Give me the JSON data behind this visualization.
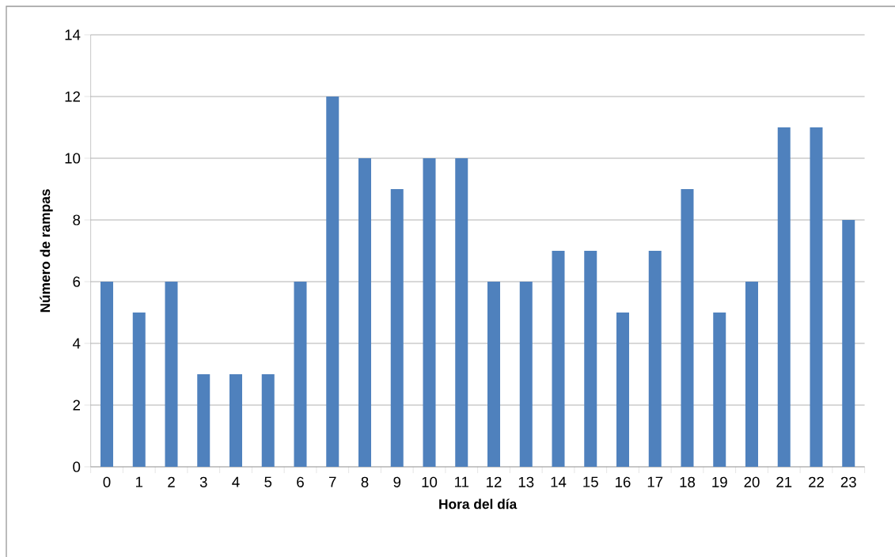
{
  "chart_data": {
    "type": "bar",
    "xlabel": "Hora del día",
    "ylabel": "Número de rampas",
    "categories": [
      "0",
      "1",
      "2",
      "3",
      "4",
      "5",
      "6",
      "7",
      "8",
      "9",
      "10",
      "11",
      "12",
      "13",
      "14",
      "15",
      "16",
      "17",
      "18",
      "19",
      "20",
      "21",
      "22",
      "23"
    ],
    "values": [
      6,
      5,
      6,
      3,
      3,
      3,
      6,
      12,
      10,
      9,
      10,
      10,
      6,
      6,
      7,
      7,
      5,
      7,
      9,
      5,
      6,
      11,
      11,
      8
    ],
    "color": "#4f81bd",
    "ylim": [
      0,
      14
    ],
    "yticks": [
      0,
      2,
      4,
      6,
      8,
      10,
      12,
      14
    ],
    "grid": "y"
  }
}
